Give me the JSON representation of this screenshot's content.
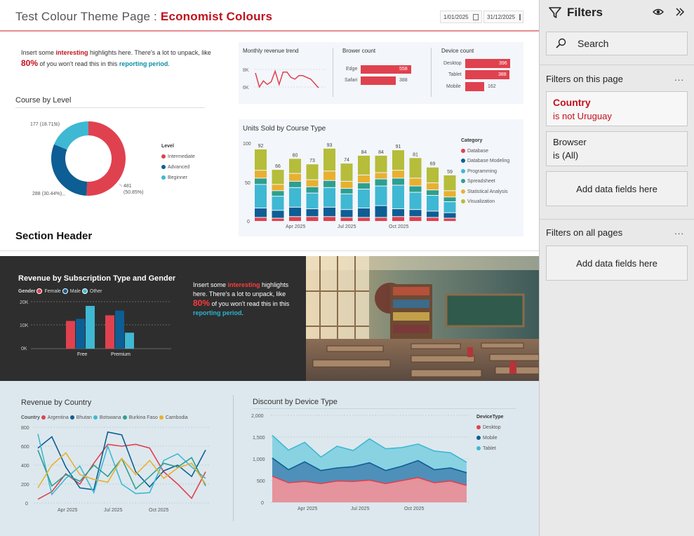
{
  "header": {
    "title_prefix": "Test Colour Theme Page : ",
    "title_brand": "Economist Colours",
    "date_start": "1/01/2025",
    "date_end": "31/12/2025"
  },
  "highlight": {
    "part1": "Insert some ",
    "word_interesting": "interesting",
    "part2": " highlights here. There's a lot to unpack, like",
    "pct": "80%",
    "part3": " of you won't read this in this ",
    "link": "reporting period",
    "end": "."
  },
  "dark_highlight": {
    "part1": "Insert some ",
    "word_interesting": "interesting",
    "part2": " highlights here. There's a lot to unpack, like",
    "pct": "80%",
    "part3": " of you won't read this in this",
    "link": "reporting period",
    "end": "."
  },
  "section_header": "Section Header",
  "kpis": {
    "revenue_trend": {
      "title": "Monthly revenue trend",
      "ticks": [
        "8K",
        "6K"
      ]
    },
    "browser": {
      "title": "Brower count",
      "rows": [
        {
          "label": "Edge",
          "value": "558"
        },
        {
          "label": "Safari",
          "value": "388"
        }
      ]
    },
    "device": {
      "title": "Device count",
      "rows": [
        {
          "label": "Desktop",
          "value": "396"
        },
        {
          "label": "Tablet",
          "value": "388"
        },
        {
          "label": "Mobile",
          "value": "162"
        }
      ]
    }
  },
  "donut": {
    "title": "Course by Level",
    "legend_title": "Level",
    "labels": {
      "intermediate_a": "481",
      "intermediate_b": "(50.85%)",
      "advanced": "288 (30.44%)",
      "beginner": "177 (18.71%)"
    },
    "colors": {
      "Intermediate": "#e0414f",
      "Advanced": "#0d5e94",
      "Beginner": "#3fb8d3"
    }
  },
  "units_chart": {
    "title": "Units Sold by Course Type",
    "legend_title": "Category",
    "yticks": [
      "100",
      "50",
      "0"
    ],
    "xticks": [
      "Apr 2025",
      "Jul 2025",
      "Oct 2025"
    ]
  },
  "subscription_chart": {
    "title": "Revenue by Subscription Type and Gender",
    "legend_title": "Gender",
    "legend": [
      "Female",
      "Male",
      "Other"
    ],
    "yticks": [
      "20K",
      "10K",
      "0K"
    ],
    "categories": [
      "Free",
      "Premium"
    ]
  },
  "country_chart": {
    "title": "Revenue by Country",
    "legend_title": "Country",
    "legend": [
      "Argentina",
      "Bhutan",
      "Botswana",
      "Burkina Faso",
      "Cambodia"
    ],
    "yticks": [
      "800",
      "600",
      "400",
      "200",
      "0"
    ],
    "xticks": [
      "Apr 2025",
      "Jul 2025",
      "Oct 2025"
    ]
  },
  "discount_chart": {
    "title": "Discount by Device Type",
    "legend_title": "DeviceType",
    "legend": [
      "Desktop",
      "Mobile",
      "Tablet"
    ],
    "yticks": [
      "2,000",
      "1,500",
      "1,000",
      "500",
      "0"
    ],
    "xticks": [
      "Apr 2025",
      "Jul 2025",
      "Oct 2025"
    ]
  },
  "filters_pane": {
    "title": "Filters",
    "search_label": "Search",
    "on_this_page": "Filters on this page",
    "on_all_pages": "Filters on all pages",
    "more": "...",
    "country_title": "Country",
    "country_value": "is not Uruguay",
    "browser_title": "Browser",
    "browser_value": "is (All)",
    "add_fields": "Add data fields here"
  },
  "chart_data": [
    {
      "type": "line",
      "title": "Monthly revenue trend",
      "x": [
        1,
        2,
        3,
        4,
        5,
        6,
        7,
        8,
        9,
        10,
        11,
        12,
        13,
        14,
        15,
        16,
        17
      ],
      "values": [
        7600,
        6000,
        6700,
        6300,
        6600,
        7800,
        6300,
        7700,
        7700,
        7100,
        6900,
        7300,
        7300,
        7100,
        6900,
        6400,
        5900
      ]
    },
    {
      "type": "bar",
      "title": "Brower count",
      "categories": [
        "Edge",
        "Safari"
      ],
      "values": [
        558,
        388
      ]
    },
    {
      "type": "bar",
      "title": "Device count",
      "categories": [
        "Desktop",
        "Tablet",
        "Mobile"
      ],
      "values": [
        396,
        388,
        162
      ]
    },
    {
      "type": "pie",
      "title": "Course by Level",
      "categories": [
        "Intermediate",
        "Advanced",
        "Beginner"
      ],
      "values": [
        481,
        288,
        177
      ]
    },
    {
      "type": "bar",
      "title": "Units Sold by Course Type",
      "ylim": [
        0,
        100
      ],
      "totals": [
        92,
        66,
        80,
        73,
        93,
        74,
        84,
        84,
        91,
        81,
        69,
        59
      ],
      "series": [
        {
          "name": "Database",
          "color": "#e0414f",
          "values": [
            5,
            4,
            6,
            6,
            6,
            5,
            5,
            5,
            6,
            6,
            5,
            4
          ]
        },
        {
          "name": "Database Modeling",
          "color": "#0d5e94",
          "values": [
            12,
            10,
            12,
            10,
            12,
            10,
            12,
            15,
            10,
            9,
            8,
            7
          ]
        },
        {
          "name": "Programming",
          "color": "#3fb8d3",
          "values": [
            30,
            18,
            25,
            20,
            25,
            20,
            24,
            25,
            30,
            22,
            20,
            14
          ]
        },
        {
          "name": "Spreadsheet",
          "color": "#2e9f8f",
          "values": [
            8,
            7,
            8,
            8,
            9,
            7,
            8,
            9,
            9,
            8,
            7,
            6
          ]
        },
        {
          "name": "Statistical Analysis",
          "color": "#e8b030",
          "values": [
            10,
            8,
            10,
            9,
            12,
            9,
            10,
            8,
            10,
            10,
            9,
            8
          ]
        },
        {
          "name": "Visualization",
          "color": "#b5bd3a",
          "values": [
            27,
            19,
            19,
            20,
            29,
            23,
            25,
            22,
            26,
            26,
            20,
            20
          ]
        }
      ]
    },
    {
      "type": "bar",
      "title": "Revenue by Subscription Type and Gender",
      "categories": [
        "Free",
        "Premium"
      ],
      "ylim": [
        0,
        20000
      ],
      "series": [
        {
          "name": "Female",
          "color": "#e0414f",
          "values": [
            11800,
            14200
          ]
        },
        {
          "name": "Male",
          "color": "#0d5e94",
          "values": [
            12700,
            16200
          ]
        },
        {
          "name": "Other",
          "color": "#3fb8d3",
          "values": [
            18200,
            6800
          ]
        }
      ]
    },
    {
      "type": "line",
      "title": "Revenue by Country",
      "ylim": [
        0,
        800
      ],
      "x": [
        1,
        2,
        3,
        4,
        5,
        6,
        7,
        8,
        9,
        10,
        11,
        12,
        13
      ],
      "series": [
        {
          "name": "Argentina",
          "color": "#e0414f",
          "values": [
            40,
            120,
            310,
            200,
            420,
            620,
            600,
            620,
            580,
            330,
            200,
            50,
            330
          ]
        },
        {
          "name": "Bhutan",
          "color": "#0d5e94",
          "values": [
            580,
            700,
            380,
            160,
            140,
            750,
            720,
            330,
            170,
            340,
            400,
            280,
            560
          ]
        },
        {
          "name": "Botswana",
          "color": "#3fb8d3",
          "values": [
            730,
            90,
            260,
            390,
            110,
            600,
            200,
            100,
            110,
            450,
            520,
            380,
            260
          ]
        },
        {
          "name": "Burkina Faso",
          "color": "#2e9f8f",
          "values": [
            560,
            180,
            300,
            230,
            400,
            280,
            470,
            150,
            280,
            420,
            380,
            480,
            180
          ]
        },
        {
          "name": "Cambodia",
          "color": "#e8b030",
          "values": [
            160,
            400,
            530,
            300,
            250,
            220,
            470,
            300,
            450,
            260,
            370,
            420,
            200
          ]
        }
      ]
    },
    {
      "type": "area",
      "title": "Discount by Device Type",
      "ylim": [
        0,
        2000
      ],
      "x": [
        1,
        2,
        3,
        4,
        5,
        6,
        7,
        8,
        9,
        10,
        11,
        12,
        13
      ],
      "series": [
        {
          "name": "Desktop",
          "color": "#e0414f",
          "values": [
            600,
            450,
            480,
            430,
            490,
            480,
            510,
            430,
            500,
            570,
            450,
            490,
            390
          ]
        },
        {
          "name": "Mobile",
          "color": "#0d5e94",
          "values": [
            420,
            300,
            450,
            300,
            300,
            340,
            400,
            300,
            330,
            390,
            300,
            300,
            290
          ]
        },
        {
          "name": "Tablet",
          "color": "#3fb8d3",
          "values": [
            520,
            450,
            450,
            310,
            500,
            370,
            550,
            500,
            430,
            380,
            430,
            350,
            240
          ]
        }
      ]
    }
  ]
}
